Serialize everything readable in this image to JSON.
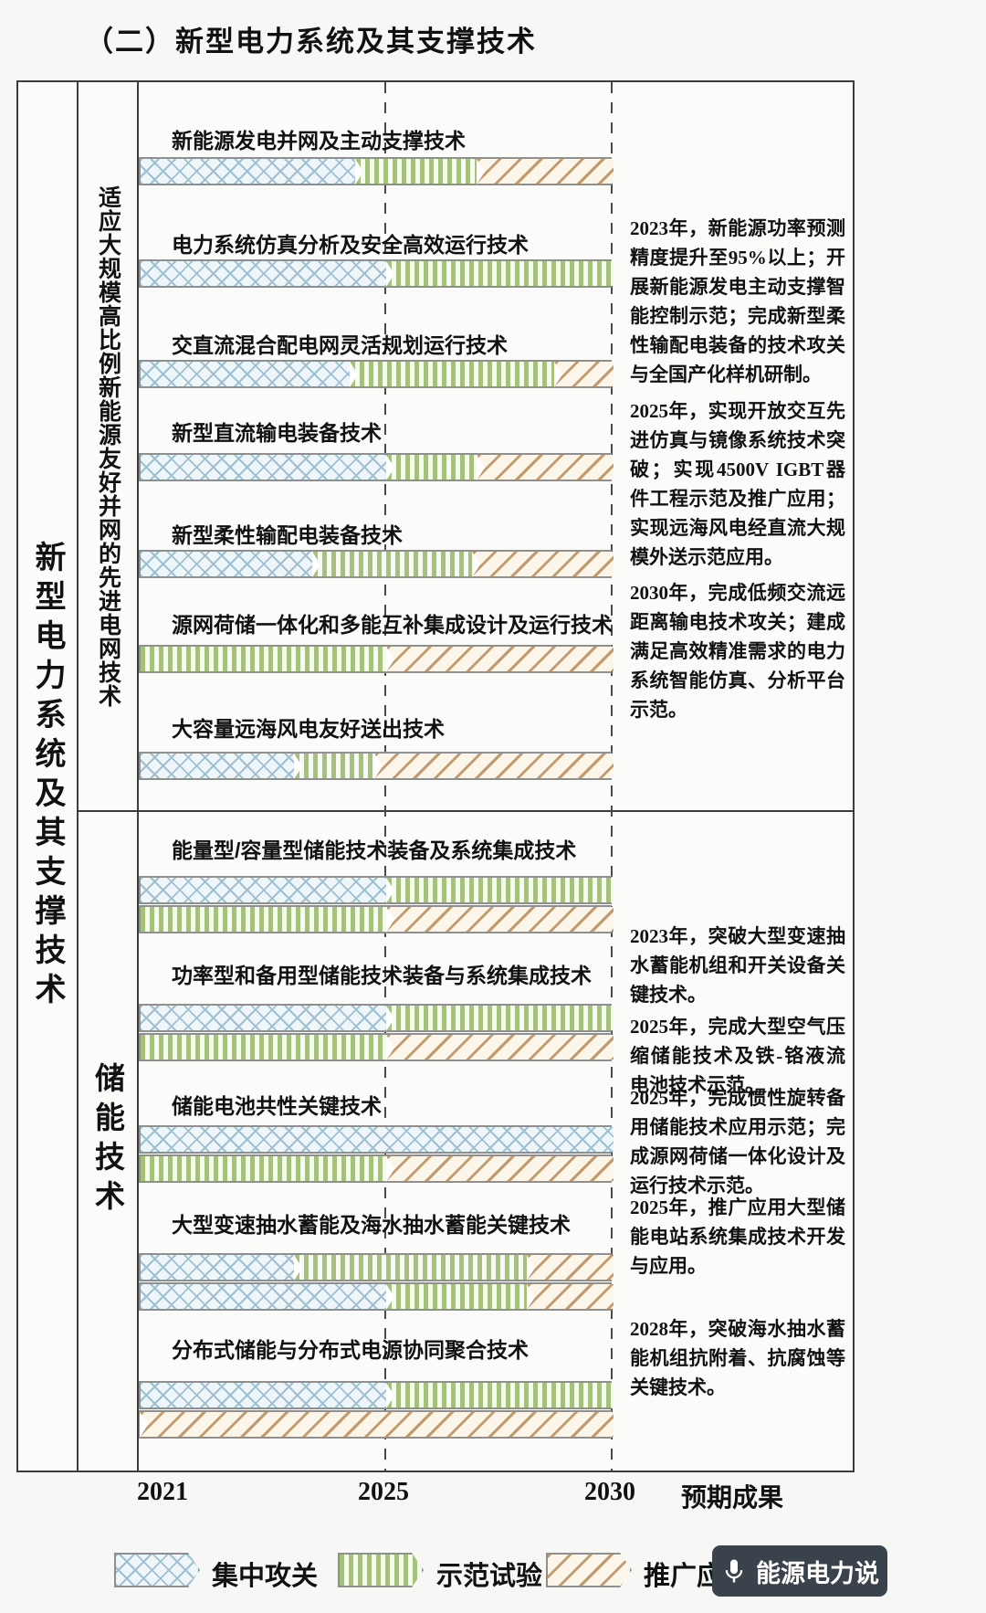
{
  "title": "（二）新型电力系统及其支撑技术",
  "left_header": "新型电力系统及其支撑技术",
  "axis": {
    "outcome_header": "预期成果"
  },
  "legend": [
    {
      "phase": "tackle",
      "label": "集中攻关"
    },
    {
      "phase": "demo",
      "label": "示范试验"
    },
    {
      "phase": "promote",
      "label": "推广应用"
    }
  ],
  "watermark": {
    "label": "能源电力说",
    "icon": "microphone-icon"
  },
  "colors": {
    "tackle_hatch": "#9fc0d0",
    "tackle_bg": "#eff6fa",
    "demo_stripe": "#a6c17b",
    "demo_bg": "#f7faf0",
    "promote_hatch": "#c29a6d",
    "promote_bg": "#fcf6ea",
    "bar_border": "#8f8f8f",
    "table_border": "#3c3c3c"
  },
  "chart_data": {
    "type": "bar",
    "variant": "gantt-roadmap",
    "title": "（二）新型电力系统及其支撑技术",
    "x_ticks": [
      "2021",
      "2025",
      "2030"
    ],
    "xlim": [
      2021,
      2030
    ],
    "phase_legend": [
      "集中攻关",
      "示范试验",
      "推广应用"
    ],
    "groups": [
      {
        "name": "适应大规模高比例新能源友好并网的先进电网技术",
        "tasks": [
          {
            "name": "新能源发电并网及主动支撑技术",
            "bars": [
              [
                [
                  "tackle",
                  2021,
                  2024.5
                ],
                [
                  "demo",
                  2024.5,
                  2027
                ],
                [
                  "promote",
                  2027,
                  2030
                ]
              ]
            ]
          },
          {
            "name": "电力系统仿真分析及安全高效运行技术",
            "bars": [
              [
                [
                  "tackle",
                  2021,
                  2025
                ],
                [
                  "demo",
                  2025,
                  2030
                ]
              ]
            ]
          },
          {
            "name": "交直流混合配电网灵活规划运行技术",
            "bars": [
              [
                [
                  "tackle",
                  2021,
                  2024.4
                ],
                [
                  "demo",
                  2024.4,
                  2028.7
                ],
                [
                  "promote",
                  2028.7,
                  2030
                ]
              ]
            ]
          },
          {
            "name": "新型直流输电装备技术",
            "bars": [
              [
                [
                  "tackle",
                  2021,
                  2025
                ],
                [
                  "demo",
                  2025,
                  2027
                ],
                [
                  "promote",
                  2027,
                  2030
                ]
              ]
            ]
          },
          {
            "name": "新型柔性输配电装备技术",
            "bars": [
              [
                [
                  "tackle",
                  2021,
                  2023.8
                ],
                [
                  "demo",
                  2023.8,
                  2026.9
                ],
                [
                  "promote",
                  2026.9,
                  2030
                ]
              ]
            ]
          },
          {
            "name": "源网荷储一体化和多能互补集成设计及运行技术",
            "bars": [
              [
                [
                  "demo",
                  2021,
                  2025
                ],
                [
                  "promote",
                  2025,
                  2030
                ]
              ]
            ]
          },
          {
            "name": "大容量远海风电友好送出技术",
            "bars": [
              [
                [
                  "tackle",
                  2021,
                  2023.5
                ],
                [
                  "demo",
                  2023.5,
                  2024.8
                ],
                [
                  "promote",
                  2024.8,
                  2030
                ]
              ]
            ]
          }
        ],
        "outcomes": [
          "2023年，新能源功率预测精度提升至95%以上；开展新能源发电主动支撑智能控制示范；完成新型柔性输配电装备的技术攻关与全国产化样机研制。",
          "2025年，实现开放交互先进仿真与镜像系统技术突破；实现4500V IGBT器件工程示范及推广应用；实现远海风电经直流大规模外送示范应用。",
          "2030年，完成低频交流远距离输电技术攻关；建成满足高效精准需求的电力系统智能仿真、分析平台示范。"
        ]
      },
      {
        "name": "储能技术",
        "tasks": [
          {
            "name": "能量型/容量型储能技术装备及系统集成技术",
            "bars": [
              [
                [
                  "tackle",
                  2021,
                  2025
                ],
                [
                  "demo",
                  2025,
                  2030
                ]
              ],
              [
                [
                  "demo",
                  2021,
                  2025
                ],
                [
                  "promote",
                  2025,
                  2030
                ]
              ]
            ]
          },
          {
            "name": "功率型和备用型储能技术装备与系统集成技术",
            "bars": [
              [
                [
                  "tackle",
                  2021,
                  2025
                ],
                [
                  "demo",
                  2025,
                  2030
                ]
              ],
              [
                [
                  "demo",
                  2021,
                  2025
                ],
                [
                  "promote",
                  2025,
                  2030
                ]
              ]
            ]
          },
          {
            "name": "储能电池共性关键技术",
            "bars": [
              [
                [
                  "tackle",
                  2021,
                  2030
                ]
              ],
              [
                [
                  "demo",
                  2021,
                  2025
                ],
                [
                  "promote",
                  2025,
                  2030
                ]
              ]
            ]
          },
          {
            "name": "大型变速抽水蓄能及海水抽水蓄能关键技术",
            "bars": [
              [
                [
                  "tackle",
                  2021,
                  2023.5
                ],
                [
                  "demo",
                  2023.5,
                  2028.1
                ],
                [
                  "promote",
                  2028.1,
                  2030
                ]
              ],
              [
                [
                  "tackle",
                  2021,
                  2025
                ],
                [
                  "demo",
                  2025,
                  2028.1
                ],
                [
                  "promote",
                  2028.1,
                  2030
                ]
              ]
            ]
          },
          {
            "name": "分布式储能与分布式电源协同聚合技术",
            "bars": [
              [
                [
                  "tackle",
                  2021,
                  2025
                ],
                [
                  "demo",
                  2025,
                  2030
                ]
              ],
              [
                [
                  "promote",
                  2021,
                  2030
                ]
              ]
            ]
          }
        ],
        "outcomes": [
          "2023年，突破大型变速抽水蓄能机组和开关设备关键技术。",
          "2025年，完成大型空气压缩储能技术及铁-铬液流电池技术示范。",
          "2025年，完成惯性旋转备用储能技术应用示范；完成源网荷储一体化设计及运行技术示范。",
          "2025年，推广应用大型储能电站系统集成技术开发与应用。",
          "2028年，突破海水抽水蓄能机组抗附着、抗腐蚀等关键技术。"
        ]
      }
    ]
  }
}
